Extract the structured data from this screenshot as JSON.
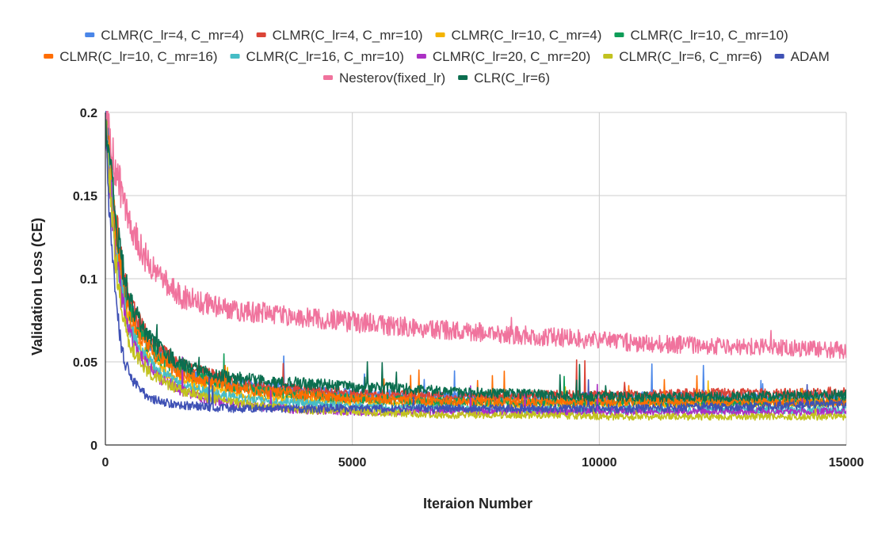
{
  "chart_data": {
    "type": "line",
    "title": "",
    "xlabel": "Iteraion Number",
    "ylabel": "Validation Loss (CE)",
    "xlim": [
      0,
      15000
    ],
    "ylim": [
      0,
      0.2
    ],
    "x_ticks": [
      0,
      5000,
      10000,
      15000
    ],
    "x_tick_labels": [
      "0",
      "5000",
      "10000",
      "15000"
    ],
    "y_ticks": [
      0,
      0.05,
      0.1,
      0.15,
      0.2
    ],
    "y_tick_labels": [
      "0",
      "0.05",
      "0.1",
      "0.15",
      "0.2"
    ],
    "grid": true,
    "legend_position": "top",
    "x": [
      0,
      100,
      200,
      300,
      400,
      500,
      750,
      1000,
      1500,
      2000,
      2500,
      3000,
      4000,
      5000,
      6000,
      7000,
      8000,
      9000,
      10000,
      11000,
      12000,
      13000,
      14000,
      15000
    ],
    "series": [
      {
        "name": "CLMR(C_lr=4,  C_mr=4)",
        "color": "#4a86e8",
        "values": [
          0.2,
          0.165,
          0.135,
          0.112,
          0.095,
          0.082,
          0.068,
          0.058,
          0.046,
          0.041,
          0.038,
          0.036,
          0.033,
          0.031,
          0.03,
          0.029,
          0.029,
          0.029,
          0.029,
          0.029,
          0.029,
          0.029,
          0.029,
          0.029
        ]
      },
      {
        "name": "CLMR(C_lr=4,  C_mr=10)",
        "color": "#db4437",
        "values": [
          0.2,
          0.168,
          0.138,
          0.115,
          0.098,
          0.085,
          0.07,
          0.06,
          0.048,
          0.043,
          0.039,
          0.036,
          0.033,
          0.031,
          0.03,
          0.029,
          0.029,
          0.03,
          0.03,
          0.03,
          0.031,
          0.031,
          0.031,
          0.032
        ]
      },
      {
        "name": "CLMR(C_lr=10,  C_mr=4)",
        "color": "#f4b400",
        "values": [
          0.2,
          0.16,
          0.125,
          0.1,
          0.083,
          0.07,
          0.056,
          0.048,
          0.04,
          0.035,
          0.032,
          0.03,
          0.027,
          0.026,
          0.025,
          0.025,
          0.025,
          0.025,
          0.025,
          0.025,
          0.025,
          0.025,
          0.025,
          0.025
        ]
      },
      {
        "name": "CLMR(C_lr=10,  C_mr=10)",
        "color": "#0f9d58",
        "values": [
          0.2,
          0.165,
          0.133,
          0.11,
          0.093,
          0.08,
          0.065,
          0.055,
          0.045,
          0.04,
          0.036,
          0.033,
          0.03,
          0.028,
          0.027,
          0.026,
          0.026,
          0.026,
          0.026,
          0.026,
          0.026,
          0.026,
          0.026,
          0.026
        ]
      },
      {
        "name": "CLMR(C_lr=10,  C_mr=16)",
        "color": "#ff6d01",
        "values": [
          0.2,
          0.163,
          0.13,
          0.107,
          0.09,
          0.078,
          0.063,
          0.054,
          0.044,
          0.039,
          0.035,
          0.033,
          0.03,
          0.028,
          0.027,
          0.026,
          0.026,
          0.026,
          0.026,
          0.026,
          0.026,
          0.026,
          0.026,
          0.026
        ]
      },
      {
        "name": "CLMR(C_lr=16,  C_mr=10)",
        "color": "#46bdc6",
        "values": [
          0.2,
          0.158,
          0.122,
          0.098,
          0.081,
          0.069,
          0.054,
          0.046,
          0.037,
          0.032,
          0.029,
          0.027,
          0.025,
          0.023,
          0.022,
          0.022,
          0.021,
          0.021,
          0.021,
          0.021,
          0.021,
          0.021,
          0.021,
          0.021
        ]
      },
      {
        "name": "CLMR(C_lr=20,  C_mr=20)",
        "color": "#ab30c4",
        "values": [
          0.2,
          0.155,
          0.118,
          0.094,
          0.078,
          0.066,
          0.051,
          0.042,
          0.033,
          0.028,
          0.025,
          0.023,
          0.021,
          0.02,
          0.02,
          0.02,
          0.02,
          0.02,
          0.02,
          0.02,
          0.02,
          0.02,
          0.02,
          0.02
        ]
      },
      {
        "name": "CLMR(C_lr=6,  C_mr=6)",
        "color": "#c2c21f",
        "values": [
          0.2,
          0.152,
          0.113,
          0.088,
          0.072,
          0.061,
          0.048,
          0.041,
          0.033,
          0.029,
          0.026,
          0.024,
          0.021,
          0.02,
          0.019,
          0.018,
          0.018,
          0.018,
          0.017,
          0.017,
          0.017,
          0.017,
          0.017,
          0.017
        ]
      },
      {
        "name": "ADAM",
        "color": "#3f51b5",
        "values": [
          0.2,
          0.13,
          0.088,
          0.064,
          0.05,
          0.041,
          0.032,
          0.027,
          0.024,
          0.023,
          0.022,
          0.022,
          0.022,
          0.022,
          0.022,
          0.022,
          0.022,
          0.022,
          0.022,
          0.022,
          0.023,
          0.023,
          0.024,
          0.025
        ]
      },
      {
        "name": "Nesterov(fixed_lr)",
        "color": "#f0739d",
        "values": [
          0.205,
          0.185,
          0.168,
          0.155,
          0.143,
          0.133,
          0.116,
          0.104,
          0.09,
          0.085,
          0.082,
          0.08,
          0.077,
          0.074,
          0.071,
          0.069,
          0.067,
          0.065,
          0.063,
          0.061,
          0.06,
          0.059,
          0.058,
          0.057
        ]
      },
      {
        "name": "CLR(C_lr=6)",
        "color": "#0b6e4f",
        "values": [
          0.2,
          0.168,
          0.138,
          0.116,
          0.099,
          0.086,
          0.071,
          0.061,
          0.049,
          0.044,
          0.041,
          0.039,
          0.037,
          0.035,
          0.034,
          0.032,
          0.031,
          0.03,
          0.029,
          0.029,
          0.029,
          0.029,
          0.03,
          0.03
        ]
      }
    ]
  }
}
